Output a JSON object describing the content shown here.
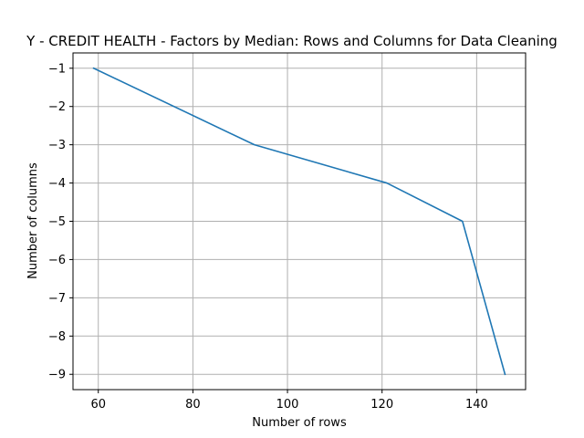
{
  "chart_data": {
    "type": "line",
    "title": "Y - CREDIT HEALTH - Factors by Median: Rows and Columns for Data Cleaning",
    "xlabel": "Number of rows",
    "ylabel": "Number of columns",
    "x": [
      59,
      93,
      121,
      137,
      146
    ],
    "series": [
      {
        "values": [
          -1,
          -3,
          -4,
          -5,
          -9
        ],
        "color": "#1f77b4"
      }
    ],
    "xlim": [
      54.65,
      150.35
    ],
    "ylim": [
      -9.4,
      -0.6
    ],
    "xticks": [
      60,
      80,
      100,
      120,
      140
    ],
    "yticks": [
      -1,
      -2,
      -3,
      -4,
      -5,
      -6,
      -7,
      -8,
      -9
    ],
    "xtick_labels": [
      "60",
      "80",
      "100",
      "120",
      "140"
    ],
    "ytick_labels": [
      "−1",
      "−2",
      "−3",
      "−4",
      "−5",
      "−6",
      "−7",
      "−8",
      "−9"
    ],
    "grid": true,
    "legend": "none"
  }
}
